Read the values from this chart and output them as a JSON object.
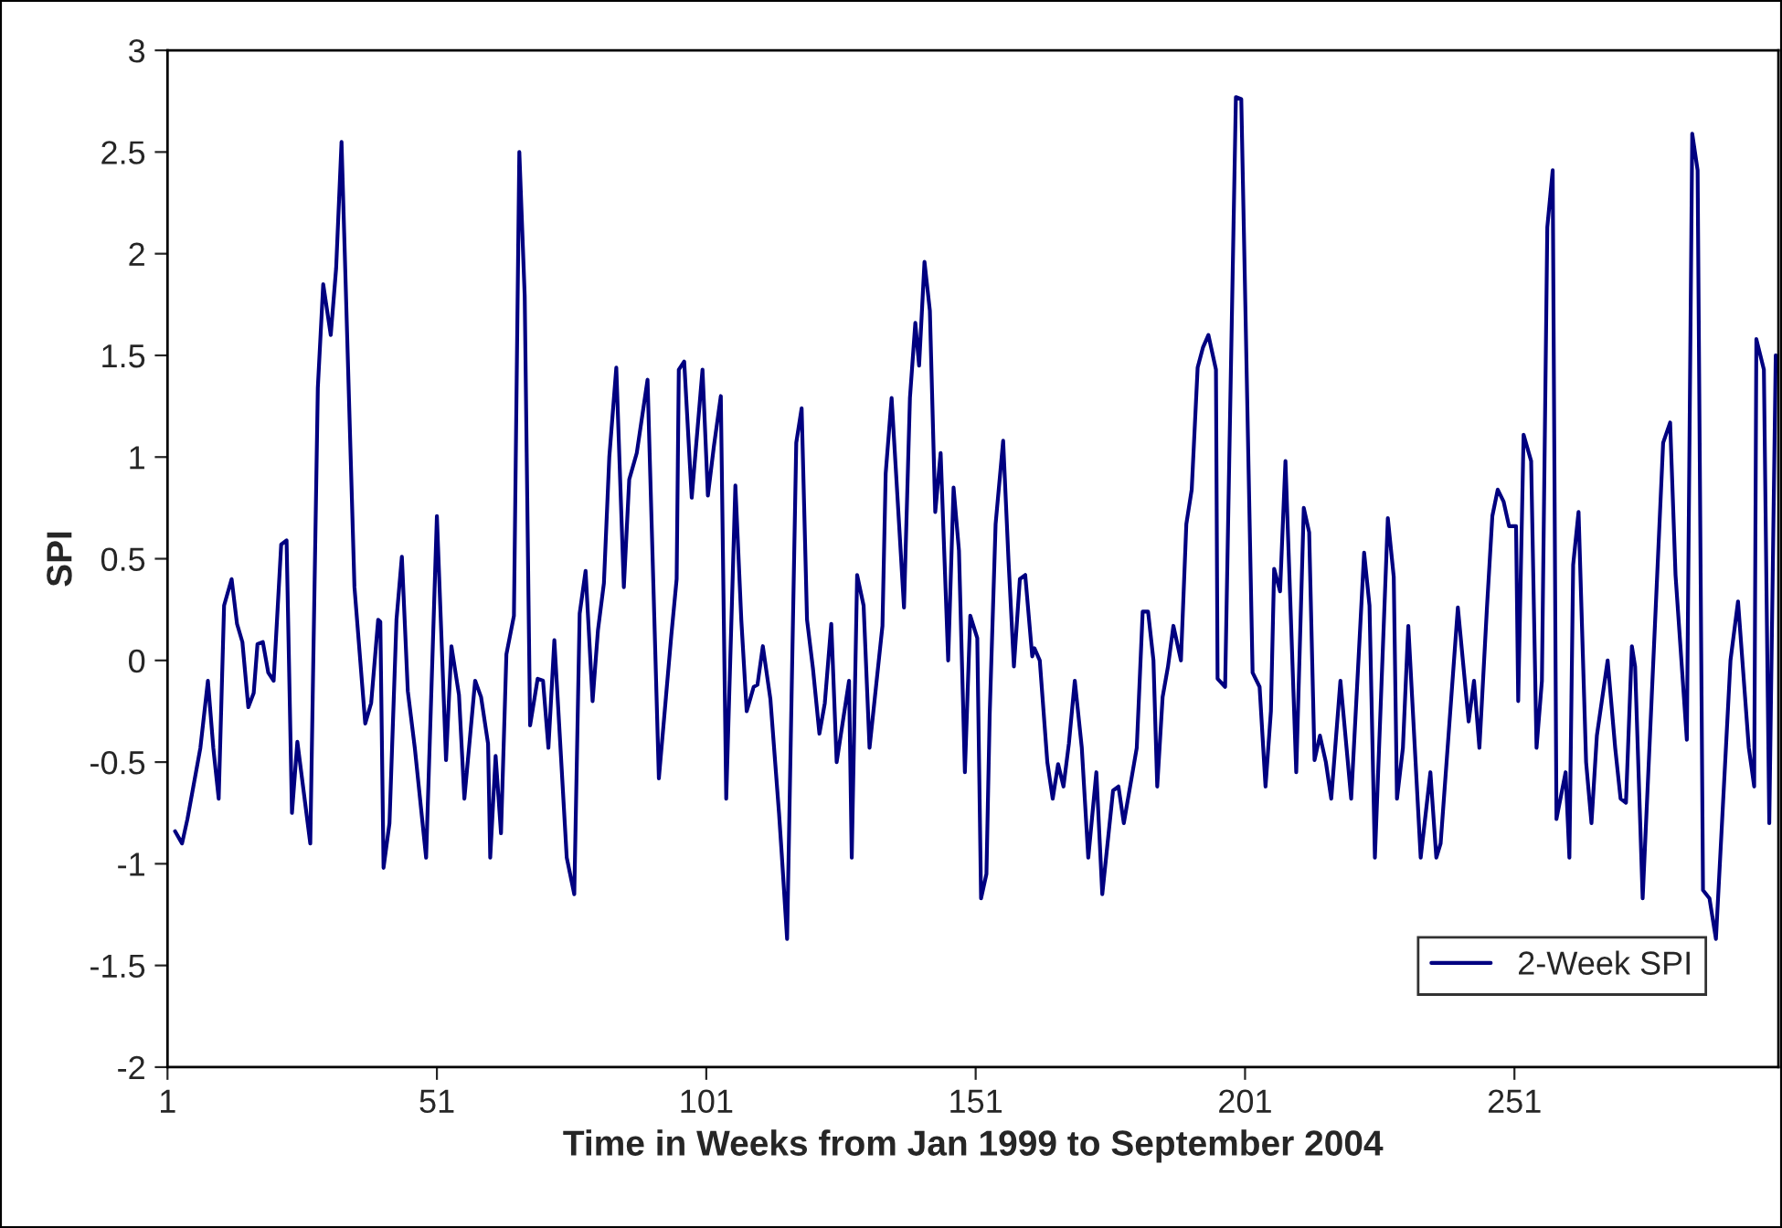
{
  "chart_data": {
    "type": "line",
    "xlabel": "Time in Weeks from Jan 1999 to September 2004",
    "ylabel": "SPI",
    "xlim": [
      1,
      300
    ],
    "xticks": [
      1,
      51,
      101,
      151,
      201,
      251
    ],
    "ylim": [
      -2,
      3
    ],
    "yticks": [
      -2,
      -1.5,
      -1,
      -0.5,
      0,
      0.5,
      1,
      1.5,
      2,
      2.5,
      3
    ],
    "grid": false,
    "legend": "bottom right",
    "marker": "none",
    "line_style": "solid",
    "series": [
      {
        "name": "2-Week SPI",
        "color": "#000080",
        "x": [
          2.4,
          3.7,
          4.7,
          7.1,
          8.5,
          9.5,
          10.5,
          11.5,
          12.9,
          13.9,
          14.9,
          16,
          17,
          17.7,
          18.7,
          19.7,
          20.7,
          22.1,
          23.1,
          24.1,
          25.1,
          27.5,
          28.9,
          29.9,
          31.3,
          32.3,
          33.3,
          35.7,
          37.7,
          38.8,
          40.1,
          40.5,
          41.1,
          42.2,
          43.5,
          44.5,
          45.6,
          46.9,
          49,
          51,
          52.7,
          53.7,
          55.1,
          56.1,
          58.1,
          59.2,
          60.5,
          60.9,
          61.9,
          62.9,
          63.9,
          65.3,
          66.3,
          67.3,
          68.3,
          69.7,
          70.7,
          71.7,
          72.8,
          75.1,
          76.5,
          77.5,
          78.6,
          79.9,
          80.9,
          82,
          83,
          84.3,
          85.7,
          86.7,
          88.1,
          90.1,
          92.2,
          94.5,
          95.5,
          95.9,
          96.9,
          98.3,
          100.3,
          101.3,
          102.4,
          103.7,
          104.7,
          106.4,
          107.5,
          108.5,
          109.8,
          110.5,
          111.5,
          112.9,
          114.5,
          115,
          116,
          117.7,
          118.7,
          119.7,
          120.8,
          122,
          123,
          124.2,
          125.2,
          127.5,
          128,
          129,
          130.2,
          131.3,
          133.7,
          134.3,
          135.4,
          137.7,
          138.8,
          139.8,
          140.5,
          141.5,
          142.5,
          143.5,
          144.5,
          145.9,
          146.9,
          147.9,
          149,
          150,
          151.3,
          152,
          153,
          153.6,
          154.7,
          156.1,
          157.1,
          158.1,
          159.2,
          160.2,
          161.5,
          161.9,
          162.9,
          164.3,
          165.3,
          166.3,
          167.3,
          168.3,
          169.4,
          170.7,
          171.9,
          173.4,
          174.5,
          176.5,
          177.5,
          178.5,
          180.9,
          182,
          183,
          184,
          184.7,
          185.7,
          186.7,
          187.7,
          189.1,
          190.1,
          191.1,
          192.2,
          193.2,
          194.2,
          195.6,
          195.9,
          197.3,
          199.3,
          200.3,
          202.4,
          203.7,
          204.8,
          205.8,
          206.4,
          207.5,
          208.5,
          210.5,
          211.9,
          212.9,
          213.9,
          214.9,
          216,
          217,
          218.7,
          220.7,
          223.1,
          224.1,
          225.1,
          227.5,
          228.6,
          229.2,
          230.3,
          231.3,
          233.6,
          235.4,
          236.5,
          237.3,
          240.5,
          242.5,
          243.5,
          244.5,
          245.9,
          246.9,
          247.9,
          249,
          250,
          251.3,
          251.7,
          252.7,
          254.1,
          255.1,
          256.1,
          257.1,
          258.1,
          258.8,
          260.5,
          261.2,
          261.9,
          262.9,
          264.3,
          265.3,
          266.3,
          268.3,
          269.7,
          270.7,
          271.7,
          272.8,
          273.4,
          274.8,
          278.6,
          279.9,
          280.9,
          283,
          284,
          285,
          286,
          287.2,
          288.4,
          291.1,
          292.5,
          294.5,
          295.5,
          295.9,
          297.3,
          298.3,
          299.5
        ],
        "values": [
          -0.84,
          -0.9,
          -0.78,
          -0.43,
          -0.1,
          -0.43,
          -0.68,
          0.27,
          0.4,
          0.18,
          0.09,
          -0.23,
          -0.16,
          0.08,
          0.09,
          -0.06,
          -0.1,
          0.57,
          0.59,
          -0.75,
          -0.4,
          -0.9,
          1.34,
          1.85,
          1.6,
          1.93,
          2.55,
          0.36,
          -0.31,
          -0.21,
          0.2,
          0.19,
          -1.02,
          -0.8,
          0.2,
          0.51,
          -0.15,
          -0.43,
          -0.97,
          0.71,
          -0.49,
          0.07,
          -0.17,
          -0.68,
          -0.1,
          -0.18,
          -0.41,
          -0.97,
          -0.47,
          -0.85,
          0.03,
          0.22,
          2.5,
          1.79,
          -0.32,
          -0.09,
          -0.1,
          -0.43,
          0.1,
          -0.97,
          -1.15,
          0.23,
          0.44,
          -0.2,
          0.15,
          0.38,
          1.0,
          1.44,
          0.36,
          0.89,
          1.02,
          1.38,
          -0.58,
          0.12,
          0.4,
          1.43,
          1.47,
          0.8,
          1.43,
          0.81,
          1.05,
          1.3,
          -0.68,
          0.86,
          0.2,
          -0.25,
          -0.13,
          -0.12,
          0.07,
          -0.19,
          -0.75,
          -0.95,
          -1.37,
          1.07,
          1.24,
          0.2,
          -0.04,
          -0.36,
          -0.21,
          0.18,
          -0.5,
          -0.1,
          -0.97,
          0.42,
          0.27,
          -0.43,
          0.17,
          0.92,
          1.29,
          0.26,
          1.29,
          1.66,
          1.45,
          1.96,
          1.72,
          0.73,
          1.02,
          0.0,
          0.85,
          0.54,
          -0.55,
          0.22,
          0.11,
          -1.17,
          -1.05,
          -0.27,
          0.67,
          1.08,
          0.49,
          -0.03,
          0.4,
          0.42,
          0.02,
          0.06,
          0.0,
          -0.5,
          -0.68,
          -0.51,
          -0.62,
          -0.41,
          -0.1,
          -0.43,
          -0.97,
          -0.55,
          -1.15,
          -0.64,
          -0.62,
          -0.8,
          -0.43,
          0.24,
          0.24,
          0.0,
          -0.62,
          -0.18,
          -0.03,
          0.17,
          0.0,
          0.67,
          0.84,
          1.44,
          1.54,
          1.6,
          1.43,
          -0.09,
          -0.13,
          2.77,
          2.76,
          -0.06,
          -0.13,
          -0.62,
          -0.25,
          0.45,
          0.34,
          0.98,
          -0.55,
          0.75,
          0.63,
          -0.49,
          -0.37,
          -0.5,
          -0.68,
          -0.1,
          -0.68,
          0.53,
          0.27,
          -0.97,
          0.7,
          0.41,
          -0.68,
          -0.43,
          0.17,
          -0.97,
          -0.55,
          -0.97,
          -0.9,
          0.26,
          -0.3,
          -0.1,
          -0.43,
          0.26,
          0.71,
          0.84,
          0.78,
          0.66,
          0.66,
          -0.2,
          1.11,
          0.98,
          -0.43,
          -0.1,
          2.13,
          2.41,
          -0.78,
          -0.55,
          -0.97,
          0.47,
          0.73,
          -0.5,
          -0.8,
          -0.37,
          0.0,
          -0.43,
          -0.68,
          -0.7,
          0.07,
          -0.03,
          -1.17,
          1.07,
          1.17,
          0.42,
          -0.39,
          2.59,
          2.41,
          -1.13,
          -1.17,
          -1.37,
          0.0,
          0.29,
          -0.43,
          -0.62,
          1.58,
          1.43,
          -0.8,
          1.5
        ]
      }
    ]
  }
}
